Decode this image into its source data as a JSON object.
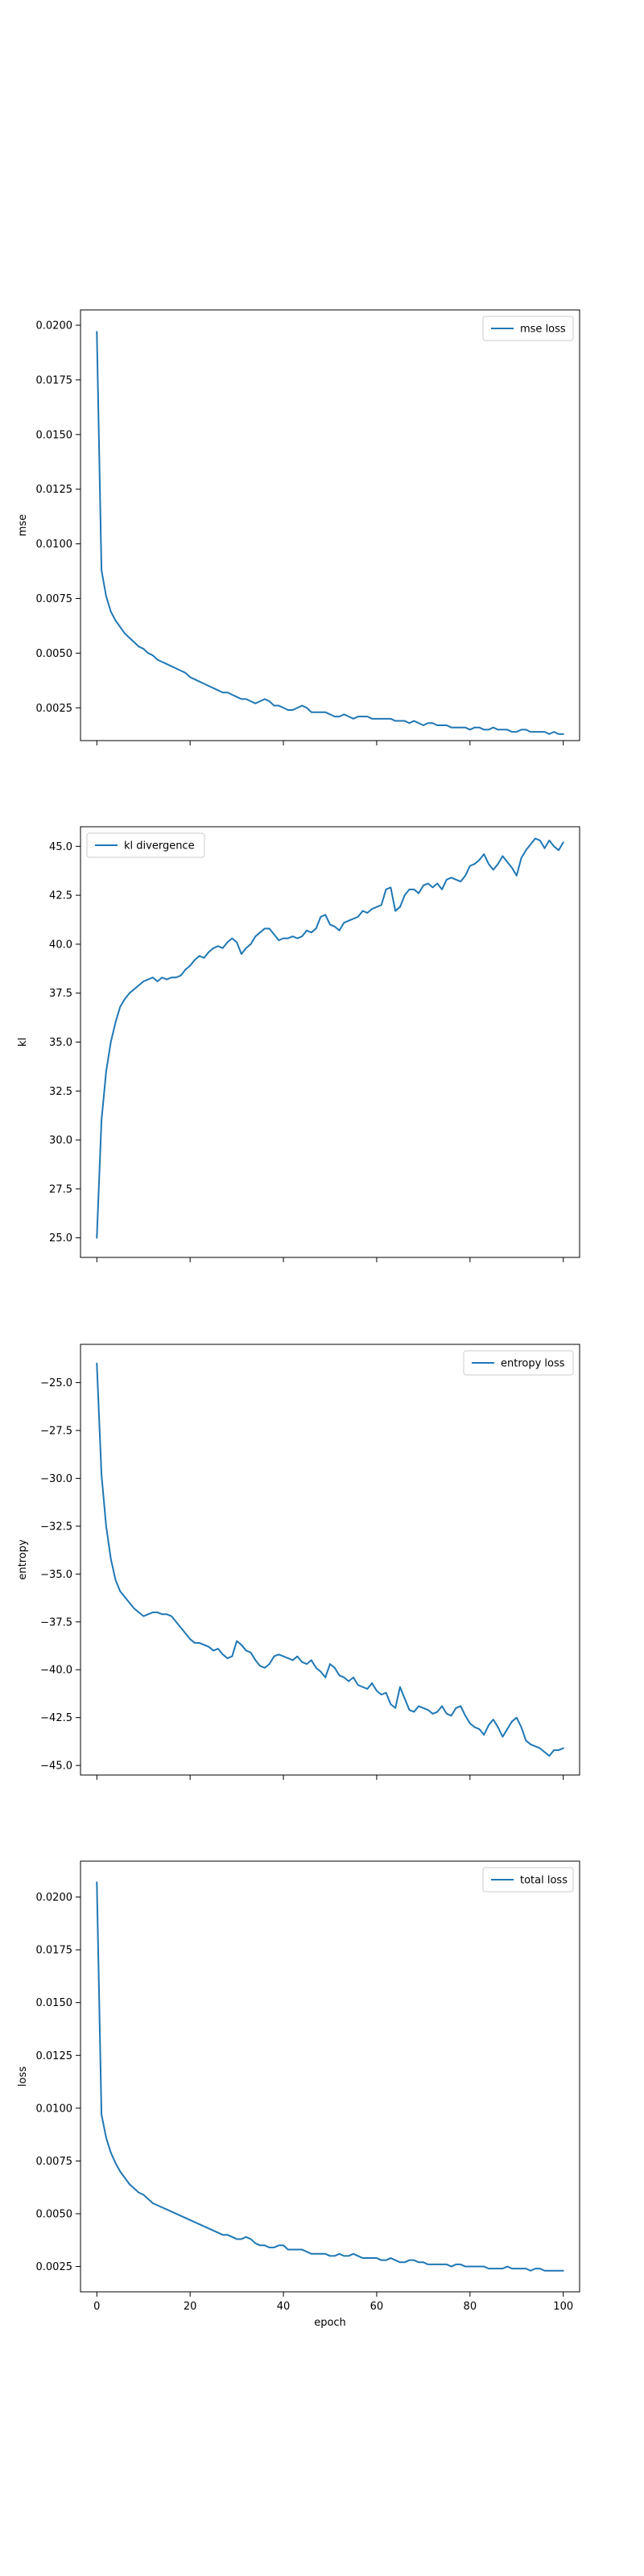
{
  "figure": {
    "line_color": "#1f77b4"
  },
  "chart_data": [
    {
      "type": "line",
      "title": "",
      "xlabel": "",
      "ylabel": "mse",
      "xlim": [
        -3.5,
        103.5
      ],
      "ylim": [
        0.001,
        0.0207
      ],
      "xticks": [
        0,
        20,
        40,
        60,
        80,
        100
      ],
      "xticks_labeled": false,
      "yticks": [
        0.0025,
        0.005,
        0.0075,
        0.01,
        0.0125,
        0.015,
        0.0175,
        0.02
      ],
      "ytick_labels": [
        "0.0025",
        "0.0050",
        "0.0075",
        "0.0100",
        "0.0125",
        "0.0150",
        "0.0175",
        "0.0200"
      ],
      "legend": "top-right",
      "series": [
        {
          "name": "mse loss",
          "x_start": 0,
          "x_step": 1,
          "values": [
            0.0197,
            0.0088,
            0.0076,
            0.0069,
            0.0065,
            0.0062,
            0.0059,
            0.0057,
            0.0055,
            0.0053,
            0.0052,
            0.005,
            0.0049,
            0.0047,
            0.0046,
            0.0045,
            0.0044,
            0.0043,
            0.0042,
            0.0041,
            0.0039,
            0.0038,
            0.0037,
            0.0036,
            0.0035,
            0.0034,
            0.0033,
            0.0032,
            0.0032,
            0.0031,
            0.003,
            0.0029,
            0.0029,
            0.0028,
            0.0027,
            0.0028,
            0.0029,
            0.0028,
            0.0026,
            0.0026,
            0.0025,
            0.0024,
            0.0024,
            0.0025,
            0.0026,
            0.0025,
            0.0023,
            0.0023,
            0.0023,
            0.0023,
            0.0022,
            0.0021,
            0.0021,
            0.0022,
            0.0021,
            0.002,
            0.0021,
            0.0021,
            0.0021,
            0.002,
            0.002,
            0.002,
            0.002,
            0.002,
            0.0019,
            0.0019,
            0.0019,
            0.0018,
            0.0019,
            0.0018,
            0.0017,
            0.0018,
            0.0018,
            0.0017,
            0.0017,
            0.0017,
            0.0016,
            0.0016,
            0.0016,
            0.0016,
            0.0015,
            0.0016,
            0.0016,
            0.0015,
            0.0015,
            0.0016,
            0.0015,
            0.0015,
            0.0015,
            0.0014,
            0.0014,
            0.0015,
            0.0015,
            0.0014,
            0.0014,
            0.0014,
            0.0014,
            0.0013,
            0.0014,
            0.0013,
            0.0013
          ]
        }
      ]
    },
    {
      "type": "line",
      "title": "",
      "xlabel": "",
      "ylabel": "kl",
      "xlim": [
        -3.5,
        103.5
      ],
      "ylim": [
        24.0,
        46.0
      ],
      "xticks": [
        0,
        20,
        40,
        60,
        80,
        100
      ],
      "xticks_labeled": false,
      "yticks": [
        25.0,
        27.5,
        30.0,
        32.5,
        35.0,
        37.5,
        40.0,
        42.5,
        45.0
      ],
      "ytick_labels": [
        "25.0",
        "27.5",
        "30.0",
        "32.5",
        "35.0",
        "37.5",
        "40.0",
        "42.5",
        "45.0"
      ],
      "legend": "top-left",
      "series": [
        {
          "name": "kl divergence",
          "x_start": 0,
          "x_step": 1,
          "values": [
            25.0,
            31.0,
            33.5,
            35.0,
            36.0,
            36.8,
            37.2,
            37.5,
            37.7,
            37.9,
            38.1,
            38.2,
            38.3,
            38.1,
            38.3,
            38.2,
            38.3,
            38.3,
            38.4,
            38.7,
            38.9,
            39.2,
            39.4,
            39.3,
            39.6,
            39.8,
            39.9,
            39.8,
            40.1,
            40.3,
            40.1,
            39.5,
            39.8,
            40.0,
            40.4,
            40.6,
            40.8,
            40.8,
            40.5,
            40.2,
            40.3,
            40.3,
            40.4,
            40.3,
            40.4,
            40.7,
            40.6,
            40.8,
            41.4,
            41.5,
            41.0,
            40.9,
            40.7,
            41.1,
            41.2,
            41.3,
            41.4,
            41.7,
            41.6,
            41.8,
            41.9,
            42.0,
            42.8,
            42.9,
            41.7,
            41.9,
            42.5,
            42.8,
            42.8,
            42.6,
            43.0,
            43.1,
            42.9,
            43.1,
            42.8,
            43.3,
            43.4,
            43.3,
            43.2,
            43.5,
            44.0,
            44.1,
            44.3,
            44.6,
            44.1,
            43.8,
            44.1,
            44.5,
            44.2,
            43.9,
            43.5,
            44.4,
            44.8,
            45.1,
            45.4,
            45.3,
            44.9,
            45.3,
            45.0,
            44.8,
            45.2
          ]
        }
      ]
    },
    {
      "type": "line",
      "title": "",
      "xlabel": "",
      "ylabel": "entropy",
      "xlim": [
        -3.5,
        103.5
      ],
      "ylim": [
        -45.5,
        -23.0
      ],
      "xticks": [
        0,
        20,
        40,
        60,
        80,
        100
      ],
      "xticks_labeled": false,
      "yticks": [
        -45.0,
        -42.5,
        -40.0,
        -37.5,
        -35.0,
        -32.5,
        -30.0,
        -27.5,
        -25.0
      ],
      "ytick_labels": [
        "−45.0",
        "−42.5",
        "−40.0",
        "−37.5",
        "−35.0",
        "−32.5",
        "−30.0",
        "−27.5",
        "−25.0"
      ],
      "legend": "top-right",
      "series": [
        {
          "name": "entropy loss",
          "x_start": 0,
          "x_step": 1,
          "values": [
            -24.0,
            -29.8,
            -32.5,
            -34.2,
            -35.3,
            -35.9,
            -36.2,
            -36.5,
            -36.8,
            -37.0,
            -37.2,
            -37.1,
            -37.0,
            -37.0,
            -37.1,
            -37.1,
            -37.2,
            -37.5,
            -37.8,
            -38.1,
            -38.4,
            -38.6,
            -38.6,
            -38.7,
            -38.8,
            -39.0,
            -38.9,
            -39.2,
            -39.4,
            -39.3,
            -38.5,
            -38.7,
            -39.0,
            -39.1,
            -39.5,
            -39.8,
            -39.9,
            -39.7,
            -39.3,
            -39.2,
            -39.3,
            -39.4,
            -39.5,
            -39.3,
            -39.6,
            -39.7,
            -39.5,
            -39.9,
            -40.1,
            -40.4,
            -39.7,
            -39.9,
            -40.3,
            -40.4,
            -40.6,
            -40.4,
            -40.8,
            -40.9,
            -41.0,
            -40.7,
            -41.1,
            -41.3,
            -41.2,
            -41.8,
            -42.0,
            -40.9,
            -41.5,
            -42.1,
            -42.2,
            -41.9,
            -42.0,
            -42.1,
            -42.3,
            -42.2,
            -41.9,
            -42.3,
            -42.4,
            -42.0,
            -41.9,
            -42.4,
            -42.8,
            -43.0,
            -43.1,
            -43.4,
            -42.9,
            -42.6,
            -43.0,
            -43.5,
            -43.1,
            -42.7,
            -42.5,
            -43.0,
            -43.7,
            -43.9,
            -44.0,
            -44.1,
            -44.3,
            -44.5,
            -44.2,
            -44.2,
            -44.1
          ]
        }
      ]
    },
    {
      "type": "line",
      "title": "",
      "xlabel": "epoch",
      "ylabel": "loss",
      "xlim": [
        -3.5,
        103.5
      ],
      "ylim": [
        0.0013,
        0.0217
      ],
      "xticks": [
        0,
        20,
        40,
        60,
        80,
        100
      ],
      "xticks_labeled": true,
      "xtick_labels": [
        "0",
        "20",
        "40",
        "60",
        "80",
        "100"
      ],
      "yticks": [
        0.0025,
        0.005,
        0.0075,
        0.01,
        0.0125,
        0.015,
        0.0175,
        0.02
      ],
      "ytick_labels": [
        "0.0025",
        "0.0050",
        "0.0075",
        "0.0100",
        "0.0125",
        "0.0150",
        "0.0175",
        "0.0200"
      ],
      "legend": "top-right",
      "series": [
        {
          "name": "total loss",
          "x_start": 0,
          "x_step": 1,
          "values": [
            0.0207,
            0.0097,
            0.0086,
            0.0079,
            0.0074,
            0.007,
            0.0067,
            0.0064,
            0.0062,
            0.006,
            0.0059,
            0.0057,
            0.0055,
            0.0054,
            0.0053,
            0.0052,
            0.0051,
            0.005,
            0.0049,
            0.0048,
            0.0047,
            0.0046,
            0.0045,
            0.0044,
            0.0043,
            0.0042,
            0.0041,
            0.004,
            0.004,
            0.0039,
            0.0038,
            0.0038,
            0.0039,
            0.0038,
            0.0036,
            0.0035,
            0.0035,
            0.0034,
            0.0034,
            0.0035,
            0.0035,
            0.0033,
            0.0033,
            0.0033,
            0.0033,
            0.0032,
            0.0031,
            0.0031,
            0.0031,
            0.0031,
            0.003,
            0.003,
            0.0031,
            0.003,
            0.003,
            0.0031,
            0.003,
            0.0029,
            0.0029,
            0.0029,
            0.0029,
            0.0028,
            0.0028,
            0.0029,
            0.0028,
            0.0027,
            0.0027,
            0.0028,
            0.0028,
            0.0027,
            0.0027,
            0.0026,
            0.0026,
            0.0026,
            0.0026,
            0.0026,
            0.0025,
            0.0026,
            0.0026,
            0.0025,
            0.0025,
            0.0025,
            0.0025,
            0.0025,
            0.0024,
            0.0024,
            0.0024,
            0.0024,
            0.0025,
            0.0024,
            0.0024,
            0.0024,
            0.0024,
            0.0023,
            0.0024,
            0.0024,
            0.0023,
            0.0023,
            0.0023,
            0.0023,
            0.0023
          ]
        }
      ]
    }
  ]
}
